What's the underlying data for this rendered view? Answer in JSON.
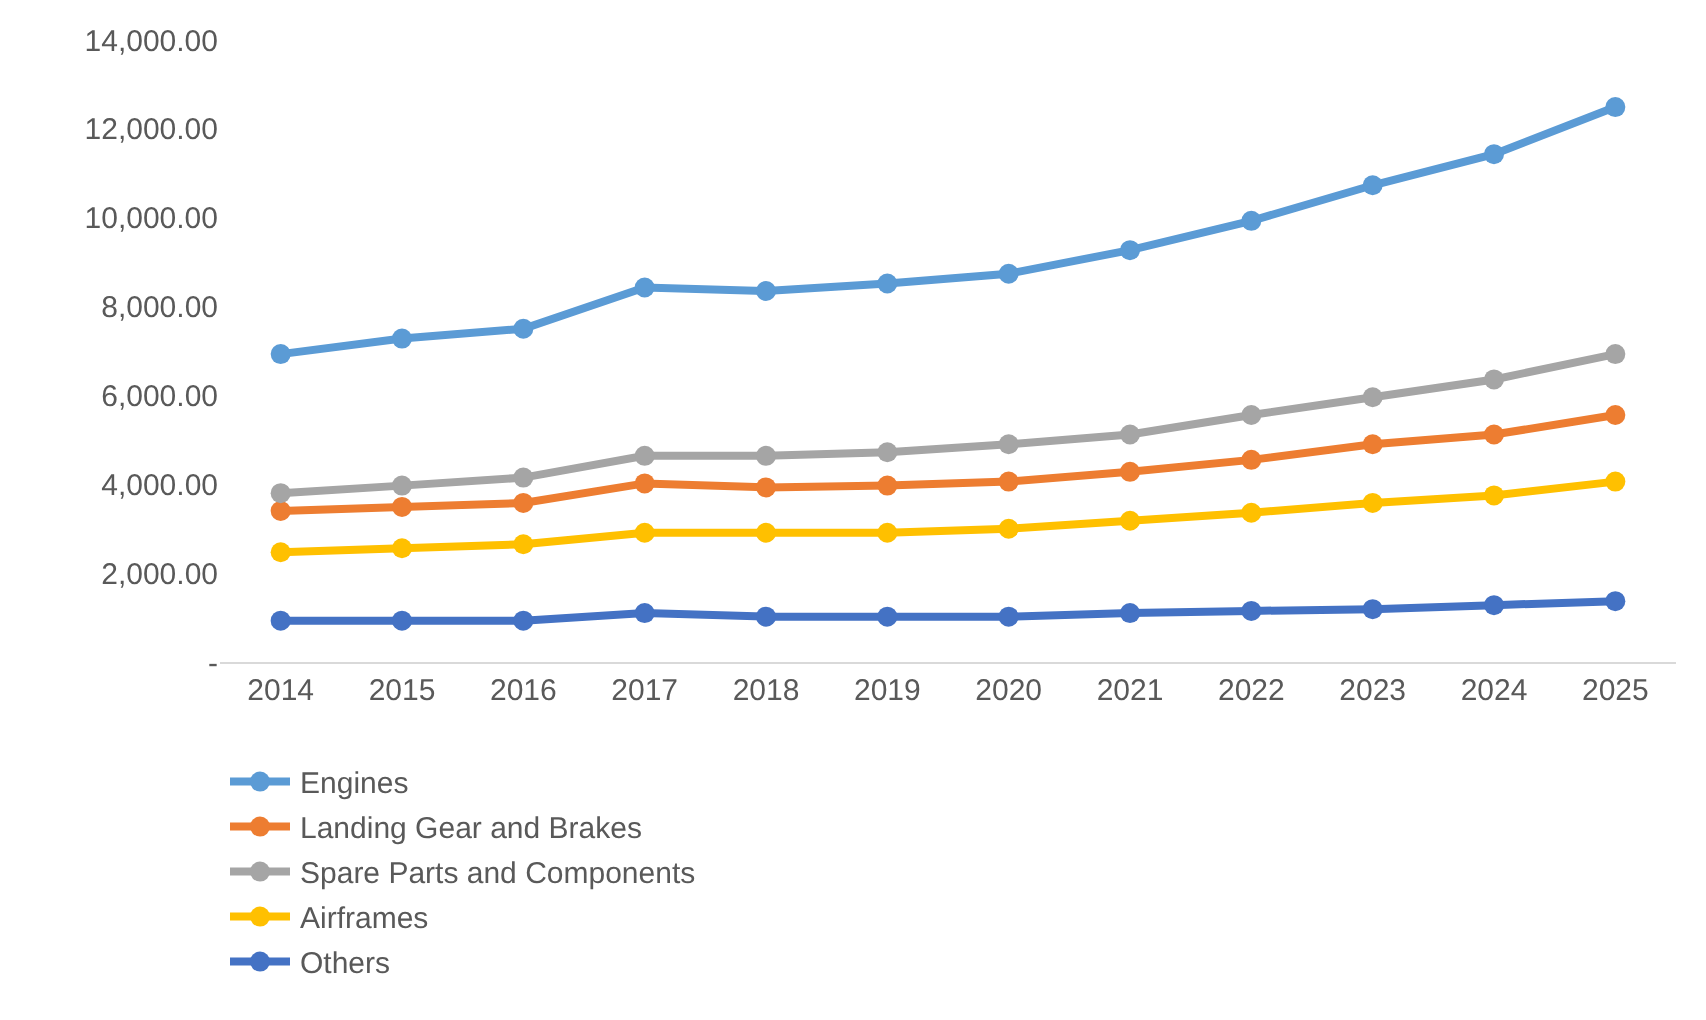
{
  "chart_data": {
    "type": "line",
    "categories": [
      "2014",
      "2015",
      "2016",
      "2017",
      "2018",
      "2019",
      "2020",
      "2021",
      "2022",
      "2023",
      "2024",
      "2025"
    ],
    "series": [
      {
        "name": "Engines",
        "color": "#5b9bd5",
        "values": [
          6930,
          7280,
          7500,
          8430,
          8350,
          8520,
          8740,
          9270,
          9930,
          10730,
          11430,
          12490
        ]
      },
      {
        "name": "Landing Gear and Brakes",
        "color": "#ed7d31",
        "values": [
          3400,
          3490,
          3580,
          4020,
          3930,
          3970,
          4060,
          4280,
          4550,
          4900,
          5120,
          5560
        ]
      },
      {
        "name": "Spare Parts and Components",
        "color": "#a5a5a5",
        "values": [
          3800,
          3970,
          4150,
          4640,
          4640,
          4720,
          4900,
          5120,
          5560,
          5960,
          6360,
          6930
        ]
      },
      {
        "name": "Airframes",
        "color": "#ffc000",
        "values": [
          2470,
          2560,
          2650,
          2910,
          2910,
          2910,
          3000,
          3180,
          3360,
          3580,
          3750,
          4060
        ]
      },
      {
        "name": "Others",
        "color": "#4472c4",
        "values": [
          930,
          930,
          930,
          1100,
          1020,
          1020,
          1020,
          1100,
          1150,
          1190,
          1280,
          1370
        ]
      }
    ],
    "ylim": [
      0,
      14000
    ],
    "yticks": [
      {
        "value": 0,
        "label": "-"
      },
      {
        "value": 2000,
        "label": "2,000.00"
      },
      {
        "value": 4000,
        "label": "4,000.00"
      },
      {
        "value": 6000,
        "label": "6,000.00"
      },
      {
        "value": 8000,
        "label": "8,000.00"
      },
      {
        "value": 10000,
        "label": "10,000.00"
      },
      {
        "value": 12000,
        "label": "12,000.00"
      },
      {
        "value": 14000,
        "label": "14,000.00"
      }
    ],
    "grid": false,
    "legend": "bottom",
    "marker": "circle",
    "line_style": "solid"
  }
}
